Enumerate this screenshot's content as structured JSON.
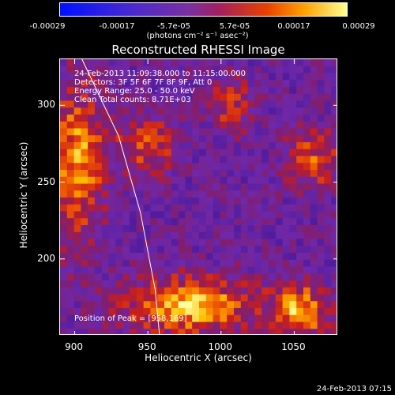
{
  "colorbar": {
    "ticks": [
      "-0.00029",
      "-0.00017",
      "-5.7e-05",
      "5.7e-05",
      "0.00017",
      "0.00029"
    ],
    "units": "(photons cm⁻² s⁻¹ asec⁻²)"
  },
  "title": "Reconstructed RHESSI Image",
  "annotations": {
    "time": "24-Feb-2013 11:09:38.000 to 11:15:00.000",
    "detectors": "Detectors: 3F 5F 6F 7F 8F 9F, Att 0",
    "energy": "Energy Range: 25.0 - 50.0 keV",
    "clean": "Clean    Total counts: 8.71E+03",
    "peak": "Position of Peak = [958,169]"
  },
  "footer": "24-Feb-2013 07:15",
  "chart_data": {
    "type": "heatmap",
    "title": "Reconstructed RHESSI Image",
    "xlabel": "Heliocentric X (arcsec)",
    "ylabel": "Heliocentric Y (arcsec)",
    "xlim": [
      890,
      1080
    ],
    "ylim": [
      150,
      330
    ],
    "x_ticks": [
      900,
      950,
      1000,
      1050
    ],
    "y_ticks": [
      200,
      250,
      300
    ],
    "x_tick_labels": [
      "900",
      "950",
      "1000",
      "1050"
    ],
    "y_tick_labels": [
      "200",
      "250",
      "300"
    ],
    "colorscale_range": [
      -0.00029,
      0.00029
    ],
    "peak": [
      958,
      169
    ],
    "limb_line": [
      [
        905,
        330
      ],
      [
        930,
        280
      ],
      [
        945,
        230
      ],
      [
        955,
        180
      ],
      [
        958,
        150
      ]
    ]
  }
}
